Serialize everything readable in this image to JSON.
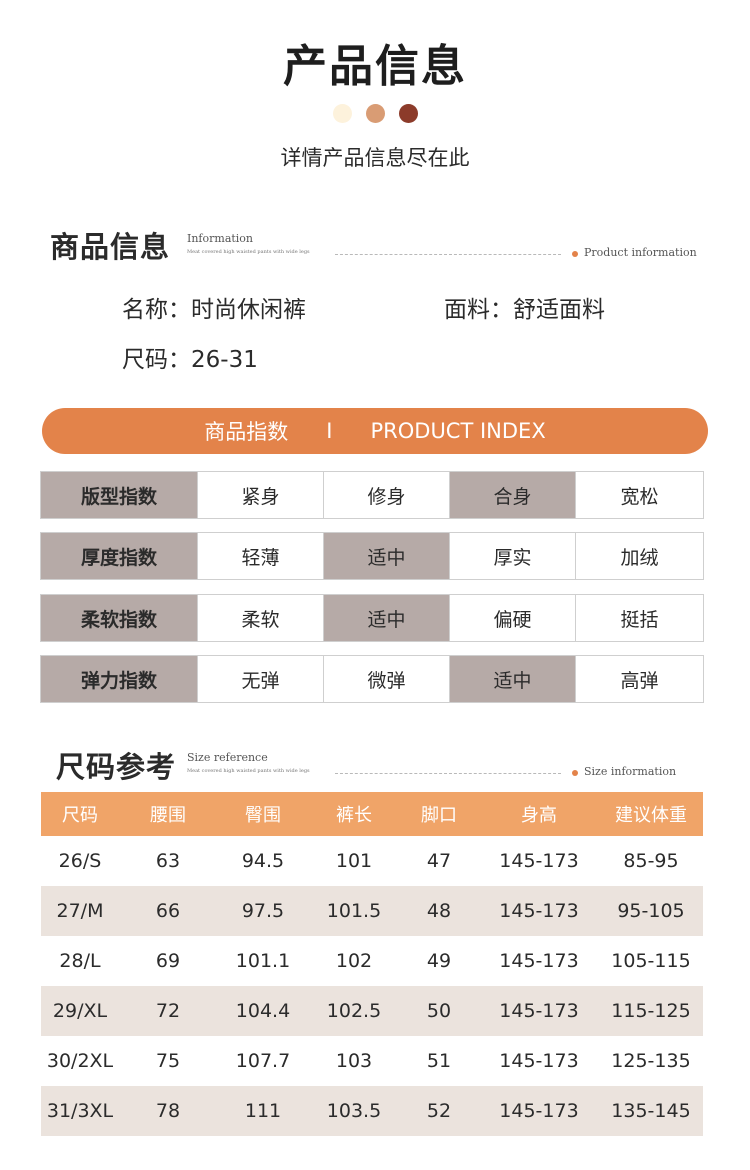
{
  "header": {
    "title": "产品信息",
    "subtitle": "详情产品信息尽在此",
    "dots": [
      "#fdf2dc",
      "#d99c74",
      "#8c3b2a"
    ]
  },
  "product_section": {
    "title": "商品信息",
    "en_label": "Information",
    "tiny_text": "Meat covered high waisted pants with wide legs",
    "right_label": "Product information",
    "name_label": "名称：",
    "name_value": "时尚休闲裤",
    "fabric_label": "面料：",
    "fabric_value": "舒适面料",
    "size_label": "尺码：",
    "size_value": "26-31"
  },
  "index_bar": {
    "cn": "商品指数",
    "sep": "I",
    "en": "PRODUCT INDEX",
    "color": "#e3834a"
  },
  "index_rows": [
    {
      "label": "版型指数",
      "options": [
        "紧身",
        "修身",
        "合身",
        "宽松"
      ],
      "selected": 2
    },
    {
      "label": "厚度指数",
      "options": [
        "轻薄",
        "适中",
        "厚实",
        "加绒"
      ],
      "selected": 1
    },
    {
      "label": "柔软指数",
      "options": [
        "柔软",
        "适中",
        "偏硬",
        "挺括"
      ],
      "selected": 1
    },
    {
      "label": "弹力指数",
      "options": [
        "无弹",
        "微弹",
        "适中",
        "高弹"
      ],
      "selected": 2
    }
  ],
  "size_section": {
    "title": "尺码参考",
    "en_label": "Size reference",
    "tiny_text": "Meat covered high waisted pants with wide legs",
    "right_label": "Size information"
  },
  "size_table": {
    "headers": [
      "尺码",
      "腰围",
      "臀围",
      "裤长",
      "脚口",
      "身高",
      "建议体重"
    ],
    "rows": [
      [
        "26/S",
        "63",
        "94.5",
        "101",
        "47",
        "145-173",
        "85-95"
      ],
      [
        "27/M",
        "66",
        "97.5",
        "101.5",
        "48",
        "145-173",
        "95-105"
      ],
      [
        "28/L",
        "69",
        "101.1",
        "102",
        "49",
        "145-173",
        "105-115"
      ],
      [
        "29/XL",
        "72",
        "104.4",
        "102.5",
        "50",
        "145-173",
        "115-125"
      ],
      [
        "30/2XL",
        "75",
        "107.7",
        "103",
        "51",
        "145-173",
        "125-135"
      ],
      [
        "31/3XL",
        "78",
        "111",
        "103.5",
        "52",
        "145-173",
        "135-145"
      ]
    ],
    "header_color": "#f0a468",
    "stripe_color": "#ebe3dd"
  },
  "colors": {
    "accent": "#e3834a",
    "selected_cell": "#b6aaa7"
  }
}
